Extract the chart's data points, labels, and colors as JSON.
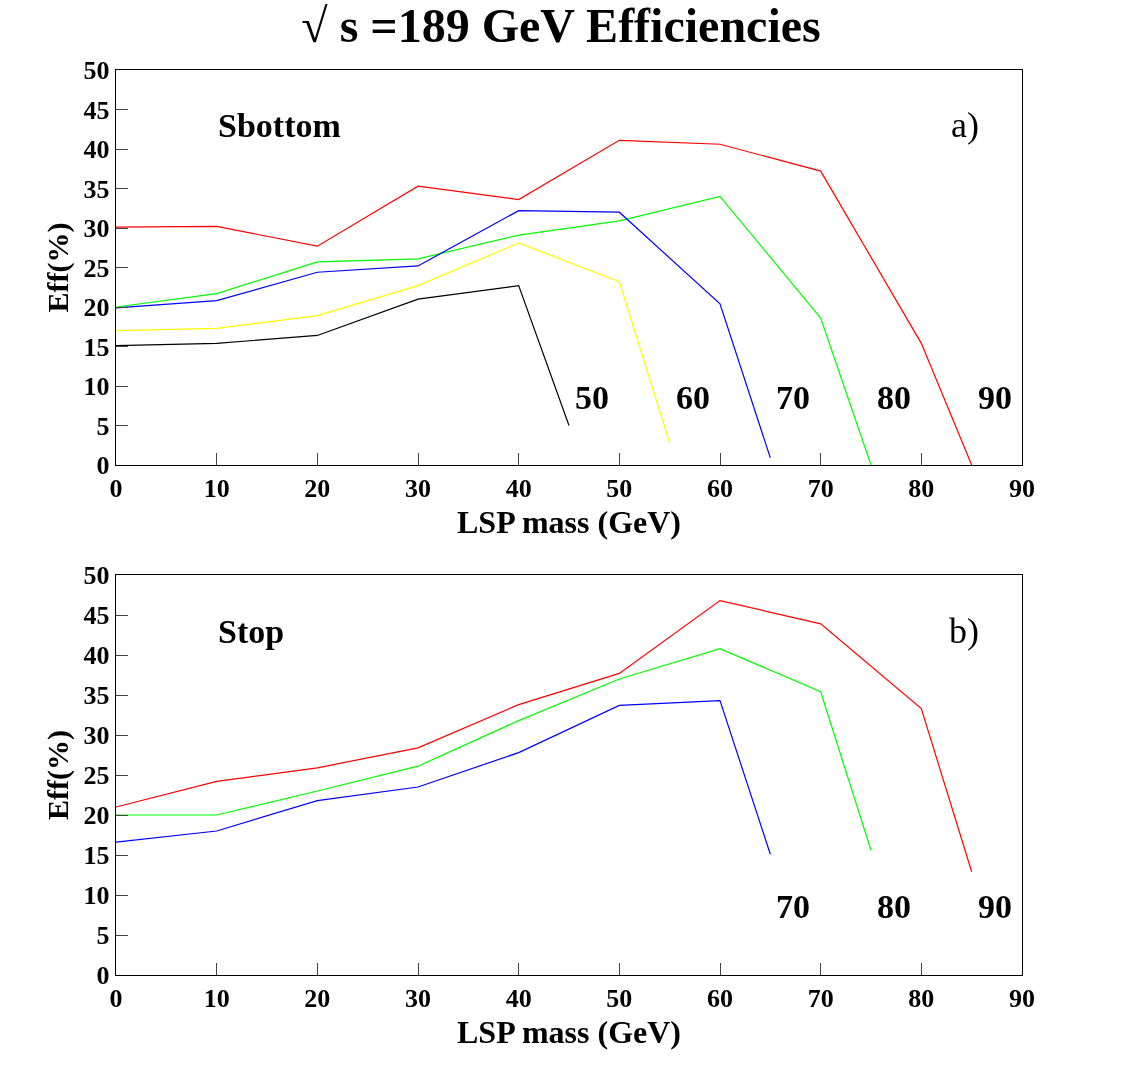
{
  "chart_data": [
    {
      "type": "line",
      "title": "√ s =189 GeV Efficiencies",
      "xlabel": "LSP mass (GeV)",
      "ylabel": "Eff(%)",
      "xlim": [
        0,
        90
      ],
      "ylim": [
        0,
        50
      ],
      "xticks": [
        0,
        10,
        20,
        30,
        40,
        50,
        60,
        70,
        80,
        90
      ],
      "yticks": [
        0,
        5,
        10,
        15,
        20,
        25,
        30,
        35,
        40,
        45,
        50
      ],
      "marker": "none",
      "line_style": "solid",
      "annotations": [
        "Sbottom",
        "a)"
      ],
      "series": [
        {
          "name": "90",
          "color": "#ff0000",
          "x": [
            0,
            10,
            20,
            30,
            40,
            50,
            60,
            70,
            80,
            85
          ],
          "values": [
            30.1,
            30.2,
            27.7,
            35.3,
            33.6,
            41.1,
            40.6,
            37.2,
            15.4,
            0
          ]
        },
        {
          "name": "80",
          "color": "#00ff00",
          "x": [
            0,
            10,
            20,
            30,
            40,
            50,
            60,
            70,
            75
          ],
          "values": [
            20.0,
            21.7,
            25.7,
            26.1,
            29.1,
            30.9,
            34.0,
            18.6,
            0
          ]
        },
        {
          "name": "70",
          "color": "#0000ff",
          "x": [
            0,
            10,
            20,
            30,
            40,
            50,
            60,
            65
          ],
          "values": [
            19.9,
            20.8,
            24.4,
            25.2,
            32.2,
            32.0,
            20.4,
            0.9
          ]
        },
        {
          "name": "60",
          "color": "#ffff00",
          "x": [
            0,
            10,
            20,
            30,
            40,
            50,
            55
          ],
          "values": [
            17.0,
            17.3,
            18.9,
            22.7,
            28.1,
            23.2,
            2.8
          ]
        },
        {
          "name": "50",
          "color": "#000000",
          "x": [
            0,
            10,
            20,
            30,
            40,
            45
          ],
          "values": [
            15.1,
            15.4,
            16.4,
            21.0,
            22.7,
            5.0
          ]
        }
      ]
    },
    {
      "type": "line",
      "xlabel": "LSP mass (GeV)",
      "ylabel": "Eff(%)",
      "xlim": [
        0,
        90
      ],
      "ylim": [
        0,
        50
      ],
      "xticks": [
        0,
        10,
        20,
        30,
        40,
        50,
        60,
        70,
        80,
        90
      ],
      "yticks": [
        0,
        5,
        10,
        15,
        20,
        25,
        30,
        35,
        40,
        45,
        50
      ],
      "marker": "none",
      "line_style": "solid",
      "annotations": [
        "Stop",
        "b)"
      ],
      "series": [
        {
          "name": "90",
          "color": "#ff0000",
          "x": [
            0,
            10,
            20,
            30,
            40,
            50,
            60,
            70,
            80,
            85
          ],
          "values": [
            21.0,
            24.2,
            25.9,
            28.4,
            33.8,
            37.7,
            46.8,
            43.9,
            33.3,
            12.9
          ]
        },
        {
          "name": "80",
          "color": "#00ff00",
          "x": [
            0,
            10,
            20,
            30,
            40,
            50,
            60,
            70,
            75
          ],
          "values": [
            20.0,
            20.0,
            23.0,
            26.1,
            31.8,
            37.0,
            40.8,
            35.4,
            15.6
          ]
        },
        {
          "name": "70",
          "color": "#0000ff",
          "x": [
            0,
            10,
            20,
            30,
            40,
            50,
            60,
            65
          ],
          "values": [
            16.6,
            18.0,
            21.8,
            23.5,
            27.8,
            33.7,
            34.3,
            15.1
          ]
        }
      ]
    }
  ]
}
